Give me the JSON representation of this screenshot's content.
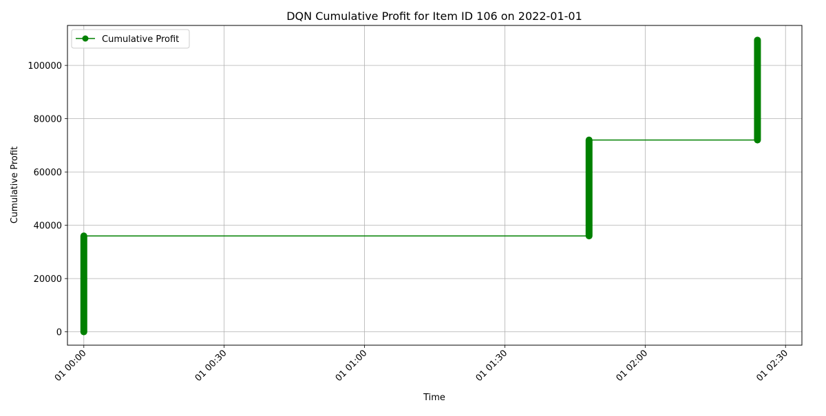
{
  "chart_data": {
    "type": "line",
    "title": "DQN Cumulative Profit for Item ID 106 on 2022-01-01",
    "xlabel": "Time",
    "ylabel": "Cumulative Profit",
    "x_ticks": [
      "01 00:00",
      "01 00:30",
      "01 01:00",
      "01 01:30",
      "01 02:00",
      "01 02:30"
    ],
    "x_range": [
      "2022-01-01 00:00",
      "2022-01-01 02:30"
    ],
    "y_ticks": [
      0,
      20000,
      40000,
      60000,
      80000,
      100000
    ],
    "ylim": [
      -5000,
      115000
    ],
    "grid": true,
    "legend_position": "top-left",
    "series": [
      {
        "name": "Cumulative Profit",
        "color": "#008000",
        "marker": "circle",
        "points": [
          {
            "x": "2022-01-01 00:00",
            "y": 0
          },
          {
            "x": "2022-01-01 00:00",
            "y": 36000
          },
          {
            "x": "2022-01-01 01:48",
            "y": 36000
          },
          {
            "x": "2022-01-01 01:48",
            "y": 72000
          },
          {
            "x": "2022-01-01 02:24",
            "y": 72000
          },
          {
            "x": "2022-01-01 02:24",
            "y": 109500
          }
        ]
      }
    ]
  }
}
